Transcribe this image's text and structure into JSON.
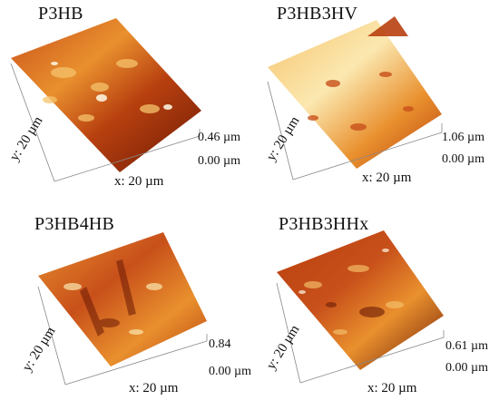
{
  "panels": [
    {
      "title": "P3HB",
      "x_label": "x: 20 µm",
      "y_label": "y: 20 µm",
      "z_max": "0.46 µm",
      "z_min": "0.00 µm"
    },
    {
      "title": "P3HB3HV",
      "x_label": "x: 20 µm",
      "y_label": "y: 20 µm",
      "z_max": "1.06 µm",
      "z_min": "0.00 µm"
    },
    {
      "title": "P3HB4HB",
      "x_label": "x: 20 µm",
      "y_label": "y: 20 µm",
      "z_max": "0.84",
      "z_min": "0.00 µm"
    },
    {
      "title": "P3HB3HHx",
      "x_label": "x: 20 µm",
      "y_label": "y: 20 µm",
      "z_max": "0.61 µm",
      "z_min": "0.00 µm"
    }
  ],
  "colors": {
    "dark": "#6b1a05",
    "mid": "#c8501a",
    "light": "#f2b35c",
    "pale": "#fbe8b0"
  }
}
